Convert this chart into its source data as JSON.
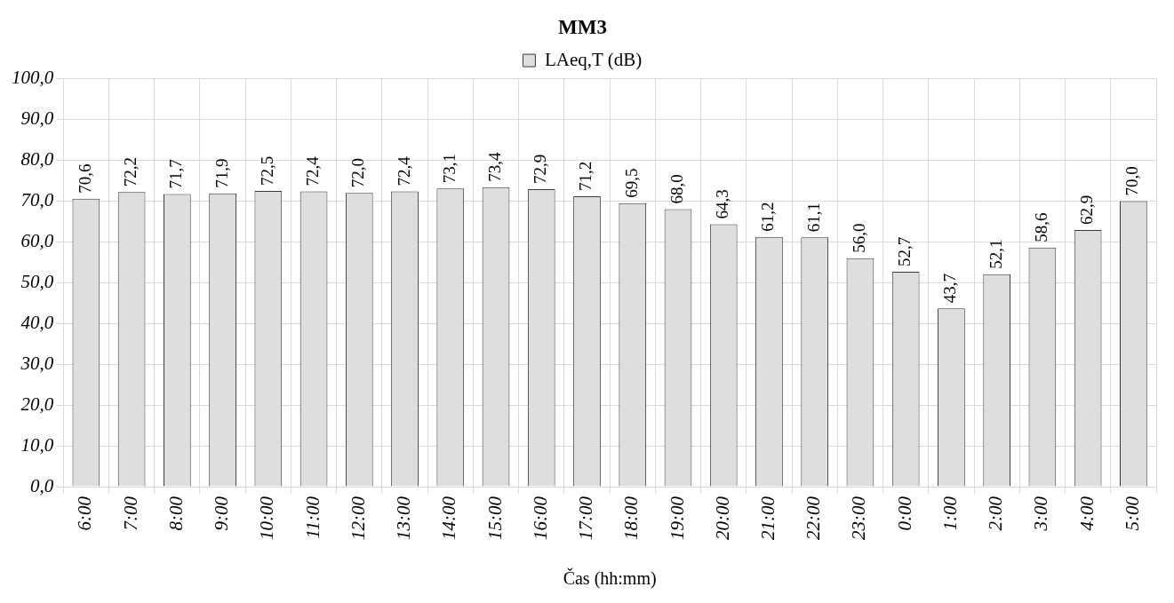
{
  "chart_data": {
    "type": "bar",
    "title": "MM3",
    "xlabel": "Čas (hh:mm)",
    "categories": [
      "6:00",
      "7:00",
      "8:00",
      "9:00",
      "10:00",
      "11:00",
      "12:00",
      "13:00",
      "14:00",
      "15:00",
      "16:00",
      "17:00",
      "18:00",
      "19:00",
      "20:00",
      "21:00",
      "22:00",
      "23:00",
      "0:00",
      "1:00",
      "2:00",
      "3:00",
      "4:00",
      "5:00"
    ],
    "series": [
      {
        "name": "LAeq,T (dB)",
        "color": "#dedede",
        "values": [
          70.6,
          72.2,
          71.7,
          71.9,
          72.5,
          72.4,
          72.0,
          72.4,
          73.1,
          73.4,
          72.9,
          71.2,
          69.5,
          68.0,
          64.3,
          61.2,
          61.1,
          56.0,
          52.7,
          43.7,
          52.1,
          58.6,
          62.9,
          70.0
        ],
        "value_labels": [
          "70,6",
          "72,2",
          "71,7",
          "71,9",
          "72,5",
          "72,4",
          "72,0",
          "72,4",
          "73,1",
          "73,4",
          "72,9",
          "71,2",
          "69,5",
          "68,0",
          "64,3",
          "61,2",
          "61,1",
          "56,0",
          "52,7",
          "43,7",
          "52,1",
          "58,6",
          "62,9",
          "70,0"
        ]
      }
    ],
    "ylim": [
      0,
      100
    ],
    "yticks": [
      {
        "value": 0,
        "label": "0,0"
      },
      {
        "value": 10,
        "label": "10,0"
      },
      {
        "value": 20,
        "label": "20,0"
      },
      {
        "value": 30,
        "label": "30,0"
      },
      {
        "value": 40,
        "label": "40,0"
      },
      {
        "value": 50,
        "label": "50,0"
      },
      {
        "value": 60,
        "label": "60,0"
      },
      {
        "value": 70,
        "label": "70,0"
      },
      {
        "value": 80,
        "label": "80,0"
      },
      {
        "value": 90,
        "label": "90,0"
      },
      {
        "value": 100,
        "label": "100,0"
      }
    ],
    "grid": true,
    "legend": "top"
  }
}
